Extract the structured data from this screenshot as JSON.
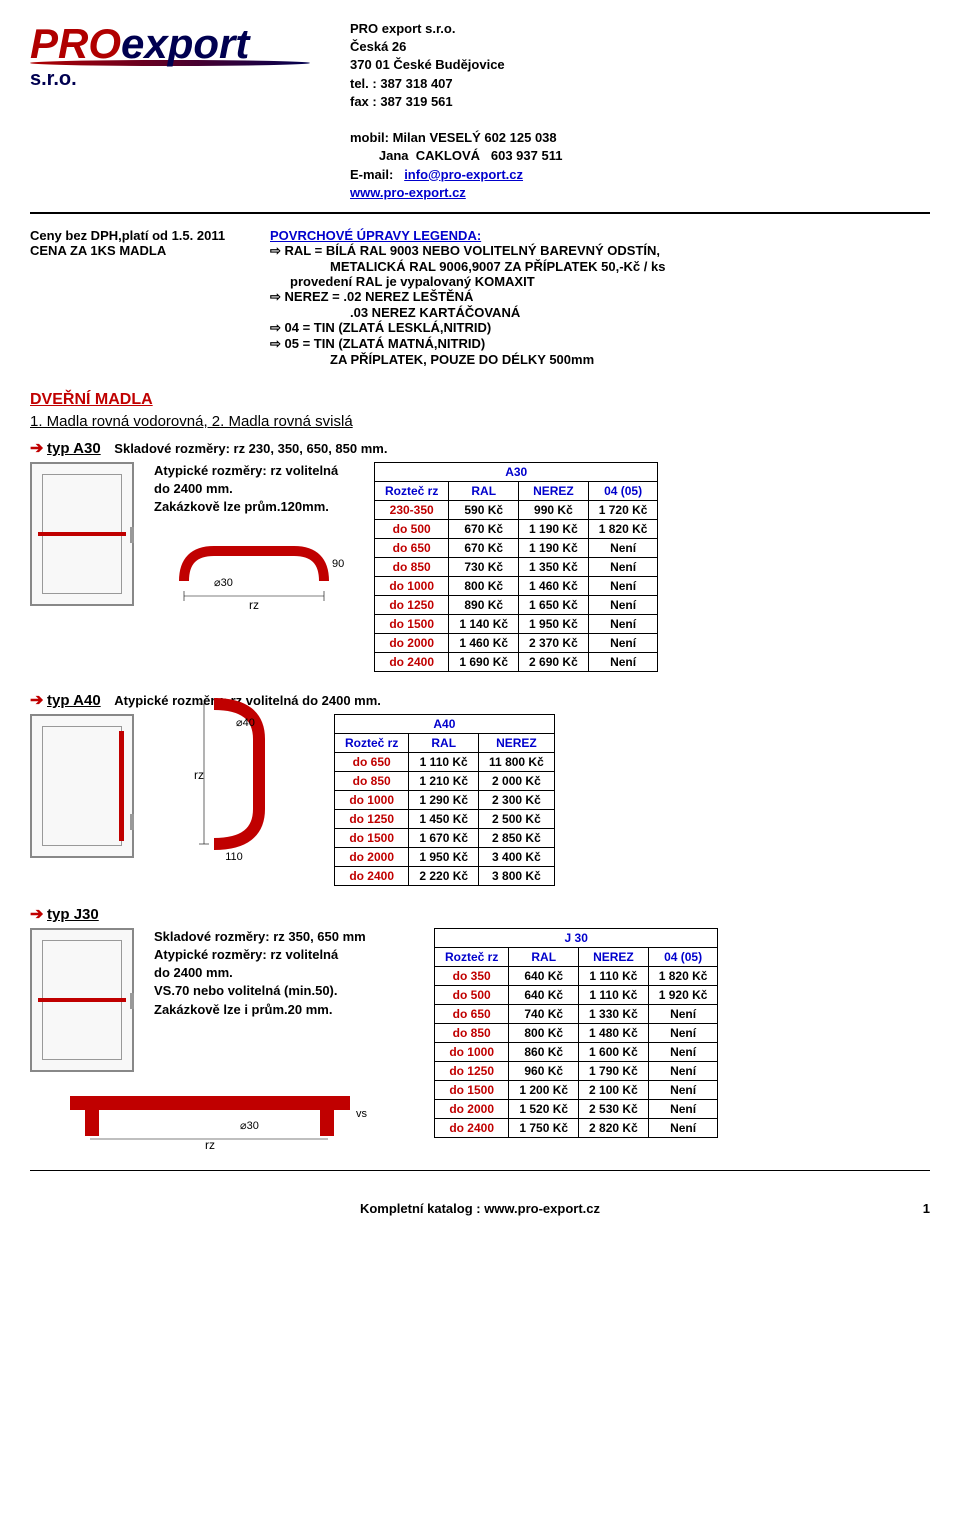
{
  "company": {
    "name": "PRO export s.r.o.",
    "addr1": "Česká 26",
    "addr2": "370 01 České Budějovice",
    "tel": "tel. :  387 318 407",
    "fax": "fax  :  387 319 561",
    "m1": "mobil: Milan VESELÝ   602 125 038",
    "m2": "        Jana  CAKLOVÁ   603 937 511",
    "email_label": "E-mail:",
    "email": "info@pro-export.cz",
    "www": "www.pro-export.cz"
  },
  "logo": {
    "pro": "PRO",
    "export": "export",
    "sro": "s.r.o."
  },
  "pricenote": {
    "l1": "Ceny bez DPH,platí od 1.5. 2011",
    "l2": "CENA ZA 1KS MADLA"
  },
  "legend": {
    "title": "POVRCHOVÉ ÚPRAVY LEGENDA:",
    "r1": "RAL = BÍLÁ RAL 9003 NEBO VOLITELNÝ BAREVNÝ ODSTÍN,",
    "r2": "METALICKÁ RAL 9006,9007 ZA PŘÍPLATEK 50,-Kč / ks",
    "r3": "provedení RAL je vypalovaný KOMAXIT",
    "r4": "NEREZ = .02 NEREZ LEŠTĚNÁ",
    "r5": ".03 NEREZ KARTÁČOVANÁ",
    "r6": "04 =    TIN (ZLATÁ LESKLÁ,NITRID)",
    "r7": "05 =    TIN (ZLATÁ MATNÁ,NITRID)",
    "r8": "ZA PŘÍPLATEK, POUZE DO DÉLKY 500mm"
  },
  "section": {
    "dverni": "DVEŘNÍ MADLA",
    "sub": "1. Madla rovná vodorovná, 2. Madla rovná svislá"
  },
  "a30": {
    "type": "typ A30",
    "d1": "Skladové rozměry: rz 230, 350, 650, 850 mm.",
    "d2": "Atypické rozměry: rz volitelná do 2400 mm.",
    "d3": "Zakázkově lze prům.120mm.",
    "title": "A30",
    "cols": [
      "Rozteč rz",
      "RAL",
      "NEREZ",
      "04 (05)"
    ],
    "rows": [
      [
        "230-350",
        "590 Kč",
        "990 Kč",
        "1 720 Kč"
      ],
      [
        "do 500",
        "670 Kč",
        "1 190 Kč",
        "1 820 Kč"
      ],
      [
        "do 650",
        "670 Kč",
        "1 190 Kč",
        "Není"
      ],
      [
        "do 850",
        "730 Kč",
        "1 350 Kč",
        "Není"
      ],
      [
        "do 1000",
        "800 Kč",
        "1 460 Kč",
        "Není"
      ],
      [
        "do 1250",
        "890 Kč",
        "1 650 Kč",
        "Není"
      ],
      [
        "do 1500",
        "1 140 Kč",
        "1 950 Kč",
        "Není"
      ],
      [
        "do 2000",
        "1 460 Kč",
        "2 370 Kč",
        "Není"
      ],
      [
        "do 2400",
        "1 690 Kč",
        "2 690 Kč",
        "Není"
      ]
    ]
  },
  "a40": {
    "type": "typ A40",
    "d1": "Atypické rozměry: rz volitelná do 2400 mm.",
    "title": "A40",
    "cols": [
      "Rozteč rz",
      "RAL",
      "NEREZ"
    ],
    "rows": [
      [
        "do 650",
        "1 110 Kč",
        "11 800 Kč"
      ],
      [
        "do 850",
        "1 210 Kč",
        "2 000 Kč"
      ],
      [
        "do 1000",
        "1 290 Kč",
        "2 300 Kč"
      ],
      [
        "do 1250",
        "1 450 Kč",
        "2 500 Kč"
      ],
      [
        "do 1500",
        "1 670 Kč",
        "2 850 Kč"
      ],
      [
        "do 2000",
        "1 950 Kč",
        "3 400 Kč"
      ],
      [
        "do 2400",
        "2 220 Kč",
        "3 800 Kč"
      ]
    ]
  },
  "j30": {
    "type": "typ J30",
    "d1": "Skladové rozměry: rz 350, 650 mm",
    "d2": "Atypické rozměry: rz volitelná",
    "d3": "do 2400 mm.",
    "d4": "VS.70 nebo volitelná (min.50).",
    "d5": "Zakázkově lze  i prům.20 mm.",
    "title": "J 30",
    "cols": [
      "Rozteč rz",
      "RAL",
      "NEREZ",
      "04 (05)"
    ],
    "rows": [
      [
        "do 350",
        "640 Kč",
        "1 110 Kč",
        "1 820 Kč"
      ],
      [
        "do 500",
        "640 Kč",
        "1 110 Kč",
        "1 920 Kč"
      ],
      [
        "do 650",
        "740 Kč",
        "1 330 Kč",
        "Není"
      ],
      [
        "do 850",
        "800 Kč",
        "1 480 Kč",
        "Není"
      ],
      [
        "do 1000",
        "860 Kč",
        "1 600 Kč",
        "Není"
      ],
      [
        "do 1250",
        "960 Kč",
        "1 790 Kč",
        "Není"
      ],
      [
        "do 1500",
        "1 200 Kč",
        "2 100 Kč",
        "Není"
      ],
      [
        "do 2000",
        "1 520 Kč",
        "2 530 Kč",
        "Není"
      ],
      [
        "do 2400",
        "1 750 Kč",
        "2 820 Kč",
        "Není"
      ]
    ]
  },
  "footer": {
    "text": "Kompletní katalog : www.pro-export.cz",
    "page": "1"
  }
}
